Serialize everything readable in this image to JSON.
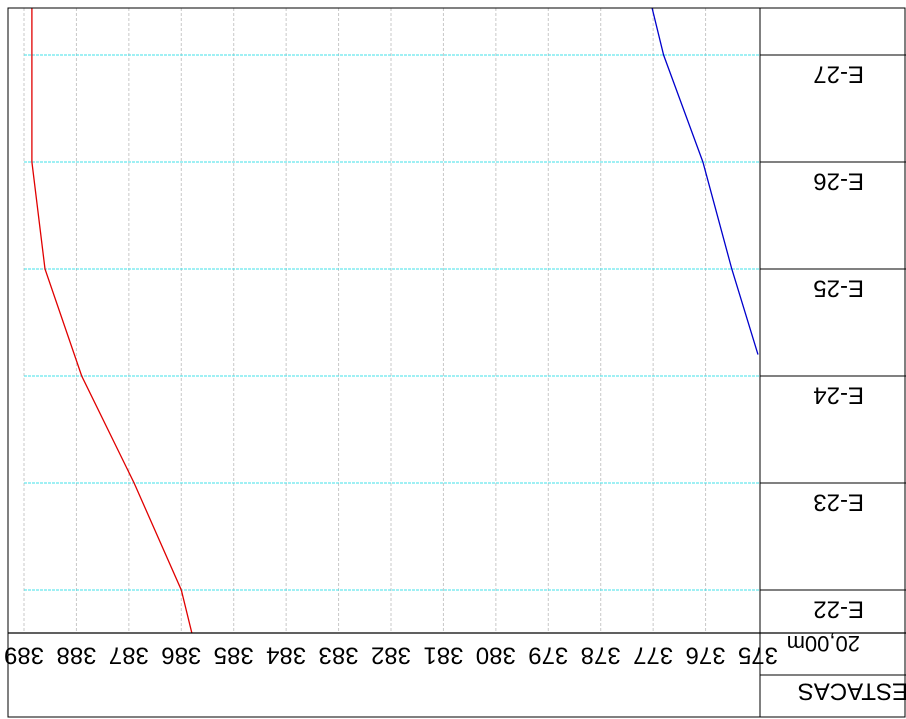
{
  "header": {
    "scale_label": "20,00m",
    "stations_header": "ESTACAS"
  },
  "stations": [
    "E-22",
    "E-23",
    "E-24",
    "E-25",
    "E-26",
    "E-27"
  ],
  "elevation_ticks": [
    "389",
    "388",
    "387",
    "386",
    "385",
    "384",
    "383",
    "382",
    "381",
    "380",
    "379",
    "378",
    "377",
    "376",
    "375"
  ],
  "colors": {
    "frame": "#000000",
    "station_line": "#40e0e8",
    "grid_line": "#c8c8c8",
    "terrain_line": "#e00000",
    "grade_line": "#0000cc"
  },
  "chart_data": {
    "type": "line",
    "orientation": "rotated 180 degrees (text upside down)",
    "xlabel": "ESTACAS",
    "ylabel": "",
    "station_interval_label": "20,00m",
    "x": [
      "E-22",
      "E-23",
      "E-24",
      "E-25",
      "E-26",
      "E-27"
    ],
    "ylim": [
      375,
      389
    ],
    "series": [
      {
        "color": "red",
        "points": [
          {
            "station": 21.6,
            "elevation": 385.8
          },
          {
            "station": 22.0,
            "elevation": 386.0
          },
          {
            "station": 23.0,
            "elevation": 386.9
          },
          {
            "station": 24.0,
            "elevation": 387.9
          },
          {
            "station": 25.0,
            "elevation": 388.6
          },
          {
            "station": 26.0,
            "elevation": 388.85
          },
          {
            "station": 27.0,
            "elevation": 388.85
          },
          {
            "station": 27.5,
            "elevation": 388.85
          }
        ]
      },
      {
        "color": "blue",
        "points": [
          {
            "station": 24.2,
            "elevation": 375.0
          },
          {
            "station": 25.0,
            "elevation": 375.5
          },
          {
            "station": 26.0,
            "elevation": 376.05
          },
          {
            "station": 27.0,
            "elevation": 376.8
          },
          {
            "station": 27.5,
            "elevation": 377.05
          }
        ]
      }
    ]
  }
}
